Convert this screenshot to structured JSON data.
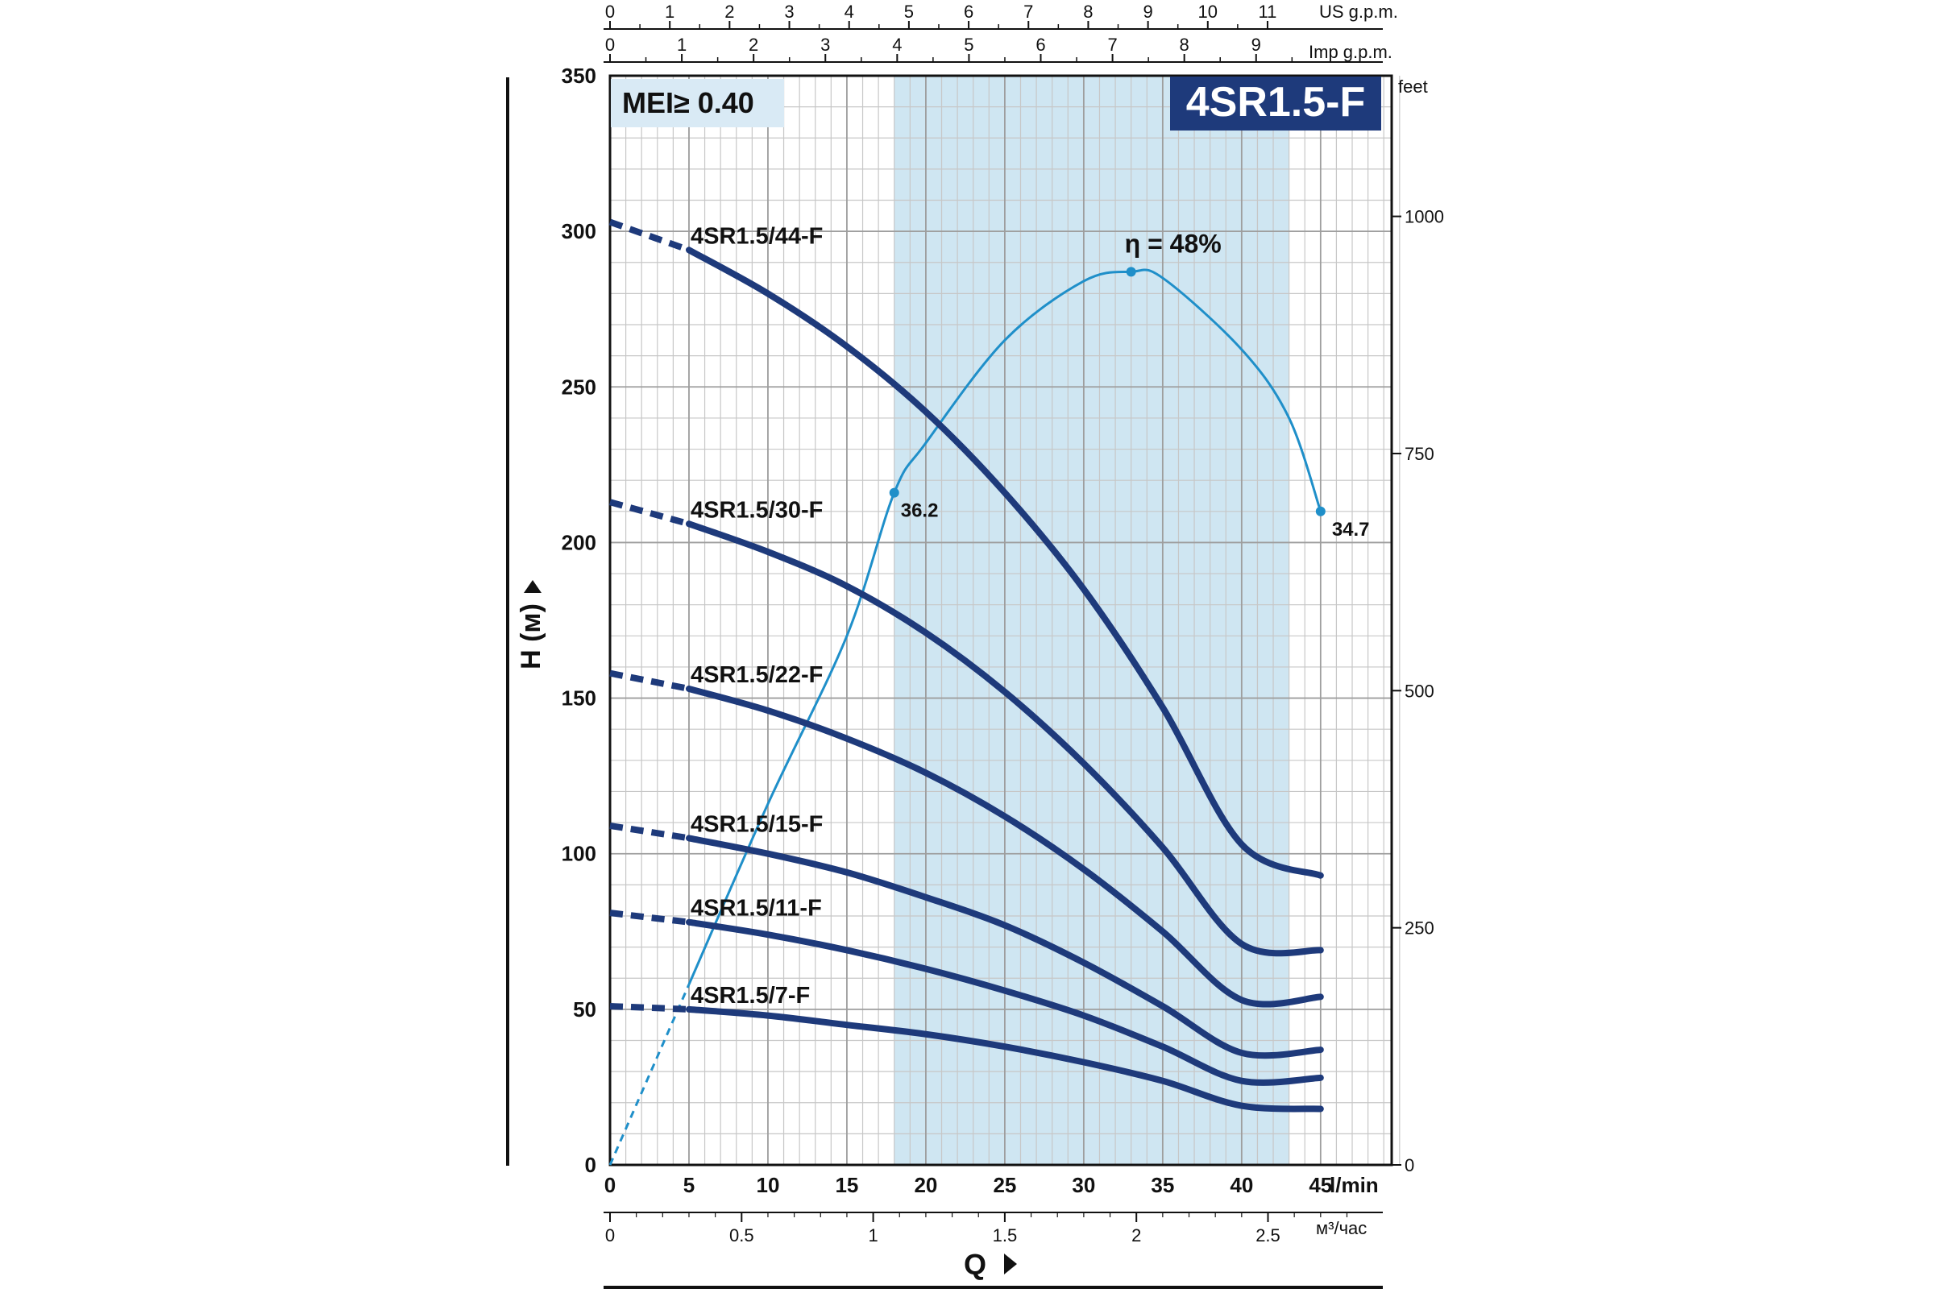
{
  "chart_data": {
    "type": "line",
    "title": "4SR1.5-F",
    "mei_label": "MEI≥ 0.40",
    "ylabel": "H (м)",
    "xlabel": "Q",
    "x_unit": "l/min",
    "ylim": [
      0,
      350
    ],
    "xlim": [
      0,
      50
    ],
    "y_ticks": [
      0,
      50,
      100,
      150,
      200,
      250,
      300,
      350
    ],
    "x_ticks": [
      0,
      5,
      10,
      15,
      20,
      25,
      30,
      35,
      40,
      45
    ],
    "feet_axis": {
      "label": "feet",
      "ticks": [
        0,
        250,
        500,
        750,
        1000
      ]
    },
    "us_gpm_axis": {
      "label": "US g.p.m.",
      "ticks": [
        0,
        1,
        2,
        3,
        4,
        5,
        6,
        7,
        8,
        9,
        10,
        11
      ]
    },
    "imp_gpm_axis": {
      "label": "Imp g.p.m.",
      "ticks": [
        0,
        1,
        2,
        3,
        4,
        5,
        6,
        7,
        8,
        9
      ]
    },
    "m3h_axis": {
      "label": "м³/час",
      "ticks": [
        "0",
        "0.5",
        "1",
        "1.5",
        "2",
        "2.5"
      ]
    },
    "recommended_range": [
      18,
      43
    ],
    "series": [
      {
        "name": "4SR1.5/44-F",
        "color": "#1e3a7b",
        "x": [
          0,
          5,
          10,
          15,
          20,
          25,
          30,
          35,
          40,
          45
        ],
        "y": [
          303,
          294,
          280,
          263,
          242,
          216,
          185,
          147,
          103,
          93
        ]
      },
      {
        "name": "4SR1.5/30-F",
        "color": "#1e3a7b",
        "x": [
          0,
          5,
          10,
          15,
          20,
          25,
          30,
          35,
          40,
          45
        ],
        "y": [
          213,
          206,
          197,
          186,
          171,
          152,
          129,
          102,
          71,
          69
        ]
      },
      {
        "name": "4SR1.5/22-F",
        "color": "#1e3a7b",
        "x": [
          0,
          5,
          10,
          15,
          20,
          25,
          30,
          35,
          40,
          45
        ],
        "y": [
          158,
          153,
          146,
          137,
          126,
          112,
          95,
          75,
          53,
          54
        ]
      },
      {
        "name": "4SR1.5/15-F",
        "color": "#1e3a7b",
        "x": [
          0,
          5,
          10,
          15,
          20,
          25,
          30,
          35,
          40,
          45
        ],
        "y": [
          109,
          105,
          100,
          94,
          86,
          77,
          65,
          51,
          36,
          37
        ]
      },
      {
        "name": "4SR1.5/11-F",
        "color": "#1e3a7b",
        "x": [
          0,
          5,
          10,
          15,
          20,
          25,
          30,
          35,
          40,
          45
        ],
        "y": [
          81,
          78,
          74,
          69,
          63,
          56,
          48,
          38,
          27,
          28
        ]
      },
      {
        "name": "4SR1.5/7-F",
        "color": "#1e3a7b",
        "x": [
          0,
          5,
          10,
          15,
          20,
          25,
          30,
          35,
          40,
          45
        ],
        "y": [
          51,
          50,
          48,
          45,
          42,
          38,
          33,
          27,
          19,
          18
        ]
      }
    ],
    "efficiency_curve": {
      "color": "#1f8fc9",
      "x": [
        0,
        5,
        10,
        15,
        18,
        20,
        25,
        30,
        33,
        35,
        40,
        43,
        45
      ],
      "y": [
        0,
        58,
        116,
        170,
        216,
        232,
        265,
        284,
        287,
        285,
        262,
        240,
        210
      ],
      "labels": [
        {
          "text": "η = 48%",
          "x": 33,
          "y": 287
        },
        {
          "text": "36.2",
          "x": 18,
          "y": 216
        },
        {
          "text": "34.7",
          "x": 45,
          "y": 210
        }
      ]
    },
    "grid": true
  },
  "colors": {
    "curve": "#1e3a7b",
    "efficiency": "#1f8fc9",
    "band": "#cfe6f2",
    "grid": "#c7c7c7",
    "title_bg": "#1e3a7b"
  }
}
